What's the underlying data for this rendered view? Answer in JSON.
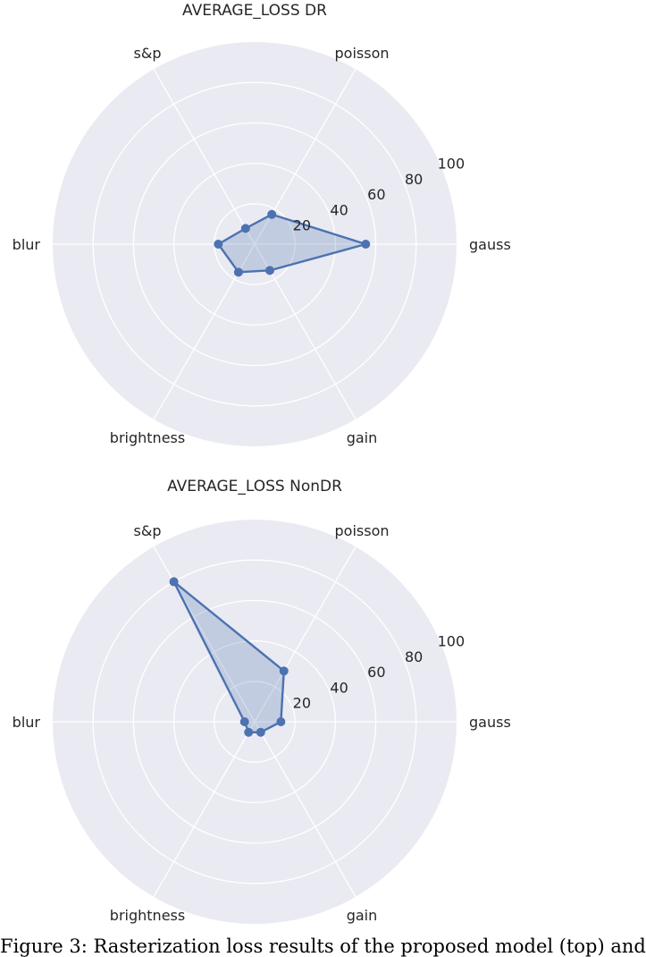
{
  "chart_data": [
    {
      "type": "radar",
      "title": "AVERAGE_LOSS DR",
      "categories": [
        "gauss",
        "poisson",
        "s&p",
        "blur",
        "brightness",
        "gain"
      ],
      "values": [
        55,
        17,
        9,
        18,
        16,
        15
      ],
      "rticks": [
        20,
        40,
        60,
        80,
        100
      ],
      "rlim": [
        0,
        100
      ],
      "grid": true,
      "color": "#4c72b0",
      "background": "#eaeaf2"
    },
    {
      "type": "radar",
      "title": "AVERAGE_LOSS NonDR",
      "categories": [
        "gauss",
        "poisson",
        "s&p",
        "blur",
        "brightness",
        "gain"
      ],
      "values": [
        13,
        29,
        80,
        5,
        6,
        6
      ],
      "rticks": [
        20,
        40,
        60,
        80,
        100
      ],
      "rlim": [
        0,
        100
      ],
      "grid": true,
      "color": "#4c72b0",
      "background": "#eaeaf2"
    }
  ],
  "caption": "Figure 3: Rasterization loss results of the proposed model (top) and"
}
